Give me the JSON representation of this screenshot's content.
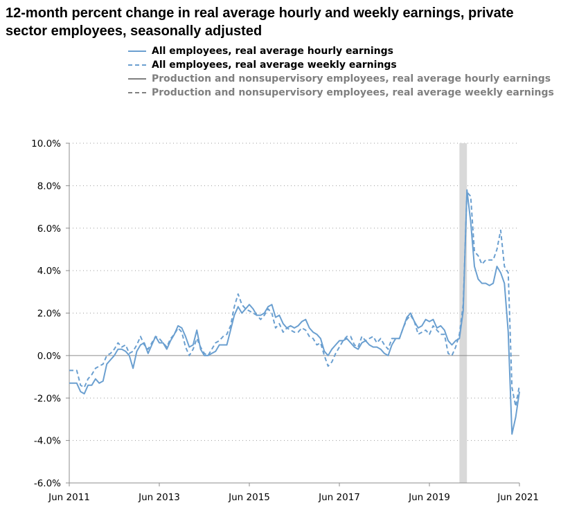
{
  "chart_data": {
    "type": "line",
    "title": "12-month percent change in real average hourly and weekly earnings, private sector employees, seasonally adjusted",
    "xlabel": "",
    "ylabel": "",
    "x_range": [
      "2011-06",
      "2021-06"
    ],
    "ylim": [
      -6,
      10
    ],
    "y_ticks": [
      10,
      8,
      6,
      4,
      2,
      0,
      -2,
      -4,
      -6
    ],
    "y_tick_labels": [
      "10.0%",
      "8.0%",
      "6.0%",
      "4.0%",
      "2.0%",
      "0.0%",
      "-2.0%",
      "-4.0%",
      "-6.0%"
    ],
    "x_ticks": [
      "2011-06",
      "2013-06",
      "2015-06",
      "2017-06",
      "2019-06",
      "2021-06"
    ],
    "x_tick_labels": [
      "Jun 2011",
      "Jun 2013",
      "Jun 2015",
      "Jun 2017",
      "Jun 2019",
      "Jun 2021"
    ],
    "grid": "horizontal dotted",
    "legend_position": "top",
    "recession_shading": {
      "start": "2020-02",
      "end": "2020-04",
      "color": "#d9d9d9"
    },
    "series": [
      {
        "name": "All employees, real average hourly earnings",
        "style": "solid",
        "color": "#6a9fd0",
        "legend_color": "#6a9fd0",
        "points": [
          [
            "2011-06",
            -1.3
          ],
          [
            "2011-08",
            -1.3
          ],
          [
            "2011-09",
            -1.7
          ],
          [
            "2011-10",
            -1.8
          ],
          [
            "2011-11",
            -1.4
          ],
          [
            "2011-12",
            -1.4
          ],
          [
            "2012-01",
            -1.1
          ],
          [
            "2012-02",
            -1.3
          ],
          [
            "2012-03",
            -1.2
          ],
          [
            "2012-04",
            -0.4
          ],
          [
            "2012-05",
            -0.2
          ],
          [
            "2012-06",
            0.0
          ],
          [
            "2012-07",
            0.3
          ],
          [
            "2012-08",
            0.3
          ],
          [
            "2012-09",
            0.2
          ],
          [
            "2012-10",
            0.0
          ],
          [
            "2012-11",
            -0.6
          ],
          [
            "2012-12",
            0.2
          ],
          [
            "2013-01",
            0.5
          ],
          [
            "2013-02",
            0.6
          ],
          [
            "2013-03",
            0.1
          ],
          [
            "2013-04",
            0.5
          ],
          [
            "2013-05",
            0.9
          ],
          [
            "2013-06",
            0.6
          ],
          [
            "2013-07",
            0.6
          ],
          [
            "2013-08",
            0.3
          ],
          [
            "2013-09",
            0.7
          ],
          [
            "2013-10",
            1.0
          ],
          [
            "2013-11",
            1.4
          ],
          [
            "2013-12",
            1.3
          ],
          [
            "2014-01",
            0.9
          ],
          [
            "2014-02",
            0.4
          ],
          [
            "2014-03",
            0.5
          ],
          [
            "2014-04",
            1.2
          ],
          [
            "2014-05",
            0.3
          ],
          [
            "2014-06",
            0.0
          ],
          [
            "2014-07",
            0.0
          ],
          [
            "2014-08",
            0.1
          ],
          [
            "2014-09",
            0.2
          ],
          [
            "2014-10",
            0.5
          ],
          [
            "2014-11",
            0.5
          ],
          [
            "2014-12",
            0.5
          ],
          [
            "2015-01",
            1.2
          ],
          [
            "2015-02",
            1.9
          ],
          [
            "2015-03",
            2.3
          ],
          [
            "2015-04",
            2.0
          ],
          [
            "2015-05",
            2.2
          ],
          [
            "2015-06",
            2.4
          ],
          [
            "2015-07",
            2.2
          ],
          [
            "2015-08",
            1.9
          ],
          [
            "2015-09",
            1.9
          ],
          [
            "2015-10",
            2.0
          ],
          [
            "2015-11",
            2.3
          ],
          [
            "2015-12",
            2.4
          ],
          [
            "2016-01",
            1.8
          ],
          [
            "2016-02",
            1.9
          ],
          [
            "2016-03",
            1.5
          ],
          [
            "2016-04",
            1.3
          ],
          [
            "2016-05",
            1.4
          ],
          [
            "2016-06",
            1.3
          ],
          [
            "2016-07",
            1.4
          ],
          [
            "2016-08",
            1.6
          ],
          [
            "2016-09",
            1.7
          ],
          [
            "2016-10",
            1.3
          ],
          [
            "2016-11",
            1.1
          ],
          [
            "2016-12",
            1.0
          ],
          [
            "2017-01",
            0.8
          ],
          [
            "2017-02",
            0.2
          ],
          [
            "2017-03",
            0.0
          ],
          [
            "2017-04",
            0.3
          ],
          [
            "2017-05",
            0.5
          ],
          [
            "2017-06",
            0.7
          ],
          [
            "2017-07",
            0.7
          ],
          [
            "2017-08",
            0.8
          ],
          [
            "2017-09",
            0.6
          ],
          [
            "2017-10",
            0.4
          ],
          [
            "2017-11",
            0.3
          ],
          [
            "2017-12",
            0.6
          ],
          [
            "2018-01",
            0.7
          ],
          [
            "2018-02",
            0.5
          ],
          [
            "2018-03",
            0.4
          ],
          [
            "2018-04",
            0.4
          ],
          [
            "2018-05",
            0.3
          ],
          [
            "2018-06",
            0.1
          ],
          [
            "2018-07",
            0.0
          ],
          [
            "2018-08",
            0.5
          ],
          [
            "2018-09",
            0.8
          ],
          [
            "2018-10",
            0.8
          ],
          [
            "2018-11",
            1.3
          ],
          [
            "2018-12",
            1.8
          ],
          [
            "2019-01",
            2.0
          ],
          [
            "2019-02",
            1.6
          ],
          [
            "2019-03",
            1.3
          ],
          [
            "2019-04",
            1.4
          ],
          [
            "2019-05",
            1.7
          ],
          [
            "2019-06",
            1.6
          ],
          [
            "2019-07",
            1.7
          ],
          [
            "2019-08",
            1.3
          ],
          [
            "2019-09",
            1.4
          ],
          [
            "2019-10",
            1.2
          ],
          [
            "2019-11",
            0.7
          ],
          [
            "2019-12",
            0.5
          ],
          [
            "2020-01",
            0.7
          ],
          [
            "2020-02",
            0.8
          ],
          [
            "2020-03",
            2.1
          ],
          [
            "2020-04",
            7.8
          ],
          [
            "2020-05",
            6.3
          ],
          [
            "2020-06",
            4.2
          ],
          [
            "2020-07",
            3.6
          ],
          [
            "2020-08",
            3.4
          ],
          [
            "2020-09",
            3.4
          ],
          [
            "2020-10",
            3.3
          ],
          [
            "2020-11",
            3.4
          ],
          [
            "2020-12",
            4.2
          ],
          [
            "2021-01",
            3.9
          ],
          [
            "2021-02",
            3.4
          ],
          [
            "2021-03",
            1.1
          ],
          [
            "2021-04",
            -3.7
          ],
          [
            "2021-05",
            -2.9
          ],
          [
            "2021-06",
            -1.7
          ]
        ]
      },
      {
        "name": "All employees, real average weekly earnings",
        "style": "dashed",
        "color": "#6a9fd0",
        "legend_color": "#6a9fd0",
        "points": [
          [
            "2011-06",
            -0.7
          ],
          [
            "2011-08",
            -0.7
          ],
          [
            "2011-09",
            -1.4
          ],
          [
            "2011-10",
            -1.5
          ],
          [
            "2011-11",
            -1.1
          ],
          [
            "2011-12",
            -0.9
          ],
          [
            "2012-01",
            -0.6
          ],
          [
            "2012-02",
            -0.5
          ],
          [
            "2012-03",
            -0.4
          ],
          [
            "2012-04",
            0.0
          ],
          [
            "2012-05",
            0.1
          ],
          [
            "2012-06",
            0.3
          ],
          [
            "2012-07",
            0.6
          ],
          [
            "2012-08",
            0.4
          ],
          [
            "2012-09",
            0.5
          ],
          [
            "2012-10",
            0.1
          ],
          [
            "2012-11",
            0.2
          ],
          [
            "2012-12",
            0.5
          ],
          [
            "2013-01",
            0.9
          ],
          [
            "2013-02",
            0.5
          ],
          [
            "2013-03",
            0.3
          ],
          [
            "2013-04",
            0.6
          ],
          [
            "2013-05",
            0.9
          ],
          [
            "2013-06",
            0.8
          ],
          [
            "2013-07",
            0.6
          ],
          [
            "2013-08",
            0.4
          ],
          [
            "2013-09",
            0.8
          ],
          [
            "2013-10",
            1.0
          ],
          [
            "2013-11",
            1.3
          ],
          [
            "2013-12",
            1.1
          ],
          [
            "2014-01",
            0.4
          ],
          [
            "2014-02",
            0.0
          ],
          [
            "2014-03",
            0.3
          ],
          [
            "2014-04",
            0.8
          ],
          [
            "2014-05",
            0.4
          ],
          [
            "2014-06",
            0.1
          ],
          [
            "2014-07",
            0.0
          ],
          [
            "2014-08",
            0.3
          ],
          [
            "2014-09",
            0.6
          ],
          [
            "2014-10",
            0.7
          ],
          [
            "2014-11",
            0.9
          ],
          [
            "2014-12",
            1.0
          ],
          [
            "2015-01",
            1.4
          ],
          [
            "2015-02",
            2.3
          ],
          [
            "2015-03",
            2.9
          ],
          [
            "2015-04",
            2.4
          ],
          [
            "2015-05",
            2.2
          ],
          [
            "2015-06",
            2.1
          ],
          [
            "2015-07",
            2.0
          ],
          [
            "2015-08",
            1.9
          ],
          [
            "2015-09",
            1.7
          ],
          [
            "2015-10",
            1.9
          ],
          [
            "2015-11",
            2.2
          ],
          [
            "2015-12",
            2.0
          ],
          [
            "2016-01",
            1.3
          ],
          [
            "2016-02",
            1.5
          ],
          [
            "2016-03",
            1.1
          ],
          [
            "2016-04",
            1.3
          ],
          [
            "2016-05",
            1.2
          ],
          [
            "2016-06",
            1.1
          ],
          [
            "2016-07",
            1.1
          ],
          [
            "2016-08",
            1.3
          ],
          [
            "2016-09",
            1.2
          ],
          [
            "2016-10",
            0.9
          ],
          [
            "2016-11",
            0.8
          ],
          [
            "2016-12",
            0.5
          ],
          [
            "2017-01",
            0.6
          ],
          [
            "2017-02",
            0.0
          ],
          [
            "2017-03",
            -0.5
          ],
          [
            "2017-04",
            -0.3
          ],
          [
            "2017-05",
            0.1
          ],
          [
            "2017-06",
            0.4
          ],
          [
            "2017-07",
            0.7
          ],
          [
            "2017-08",
            0.9
          ],
          [
            "2017-09",
            0.9
          ],
          [
            "2017-10",
            0.5
          ],
          [
            "2017-11",
            0.4
          ],
          [
            "2017-12",
            0.9
          ],
          [
            "2018-01",
            0.7
          ],
          [
            "2018-02",
            0.8
          ],
          [
            "2018-03",
            0.9
          ],
          [
            "2018-04",
            0.6
          ],
          [
            "2018-05",
            0.8
          ],
          [
            "2018-06",
            0.5
          ],
          [
            "2018-07",
            0.3
          ],
          [
            "2018-08",
            0.8
          ],
          [
            "2018-09",
            0.8
          ],
          [
            "2018-10",
            0.8
          ],
          [
            "2018-11",
            1.3
          ],
          [
            "2018-12",
            1.7
          ],
          [
            "2019-01",
            1.9
          ],
          [
            "2019-02",
            1.6
          ],
          [
            "2019-03",
            1.0
          ],
          [
            "2019-04",
            1.1
          ],
          [
            "2019-05",
            1.2
          ],
          [
            "2019-06",
            1.0
          ],
          [
            "2019-07",
            1.4
          ],
          [
            "2019-08",
            1.2
          ],
          [
            "2019-09",
            1.0
          ],
          [
            "2019-10",
            1.0
          ],
          [
            "2019-11",
            0.1
          ],
          [
            "2019-12",
            0.0
          ],
          [
            "2020-01",
            0.4
          ],
          [
            "2020-02",
            1.0
          ],
          [
            "2020-03",
            2.4
          ],
          [
            "2020-04",
            7.7
          ],
          [
            "2020-05",
            7.5
          ],
          [
            "2020-06",
            4.9
          ],
          [
            "2020-07",
            4.7
          ],
          [
            "2020-08",
            4.3
          ],
          [
            "2020-09",
            4.5
          ],
          [
            "2020-10",
            4.5
          ],
          [
            "2020-11",
            4.5
          ],
          [
            "2020-12",
            5.0
          ],
          [
            "2021-01",
            5.9
          ],
          [
            "2021-02",
            4.2
          ],
          [
            "2021-03",
            3.9
          ],
          [
            "2021-04",
            -1.5
          ],
          [
            "2021-05",
            -2.4
          ],
          [
            "2021-06",
            -1.4
          ]
        ]
      },
      {
        "name": "Production and nonsupervisory employees, real average hourly earnings",
        "style": "solid",
        "color": "#7f7f7f",
        "legend_color": "#7f7f7f",
        "points": []
      },
      {
        "name": "Production and nonsupervisory employees, real average weekly earnings",
        "style": "dashed",
        "color": "#7f7f7f",
        "legend_color": "#7f7f7f",
        "points": []
      }
    ]
  }
}
